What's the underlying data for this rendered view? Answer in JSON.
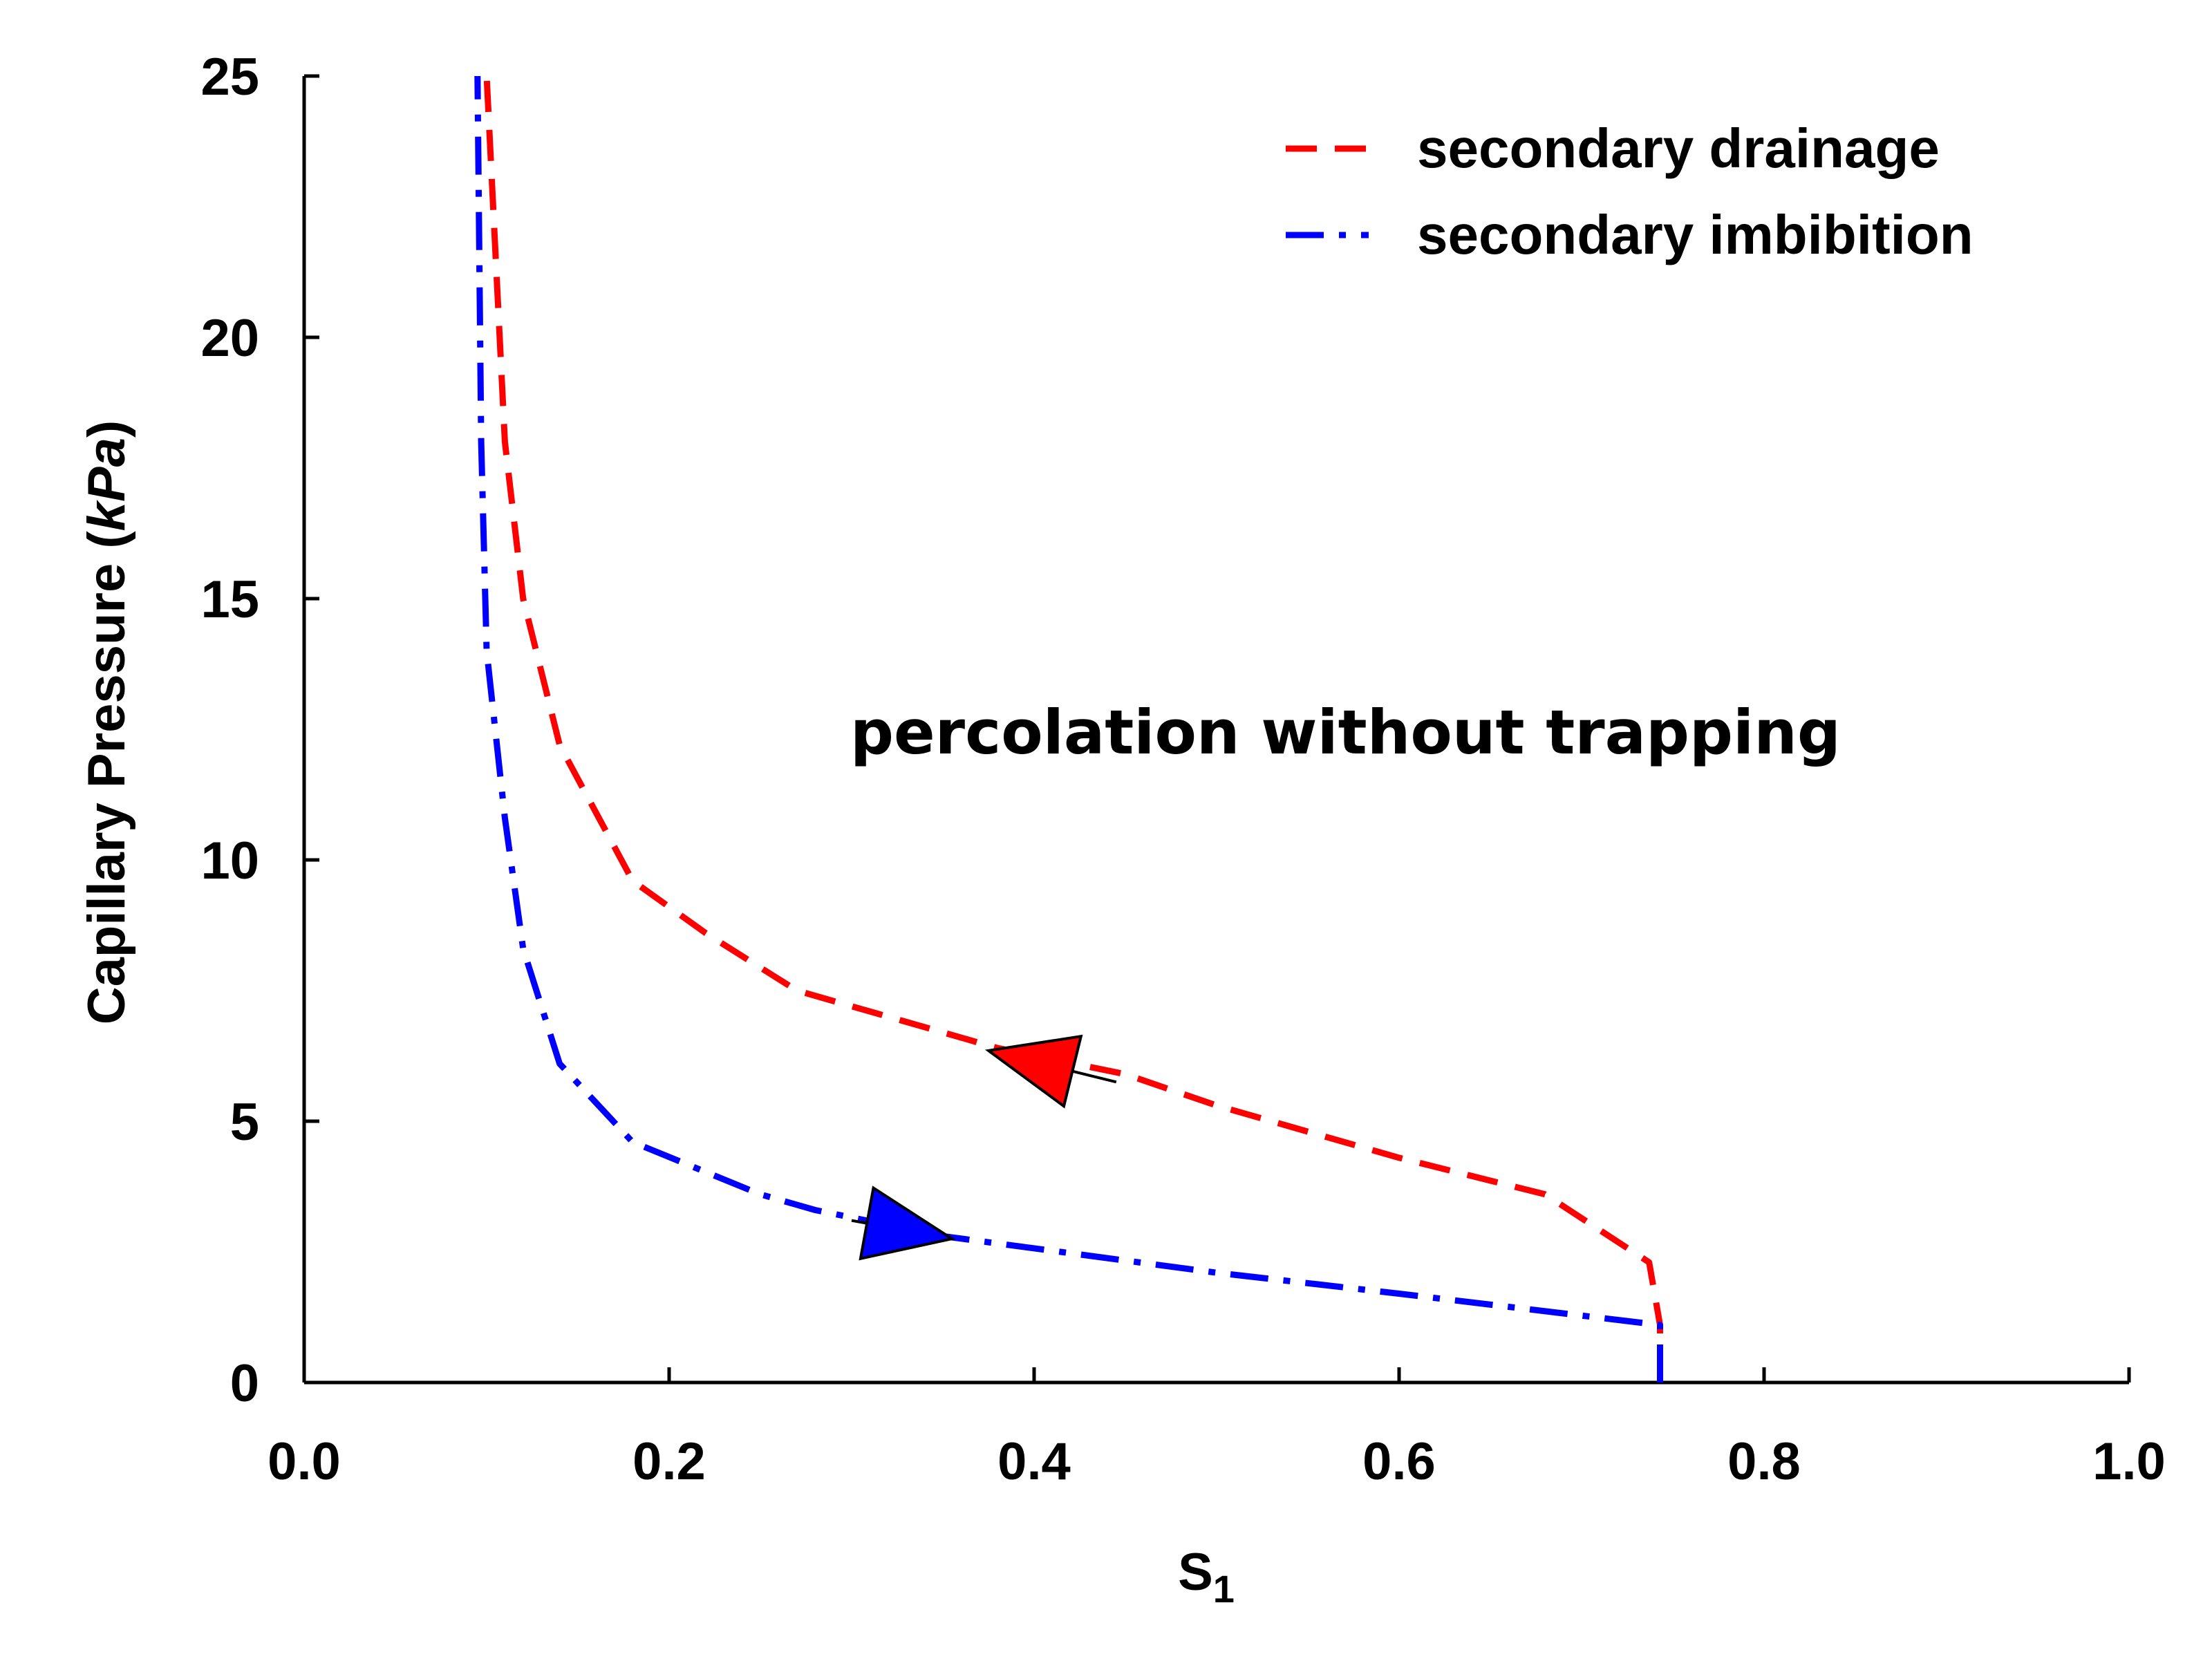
{
  "chart_data": {
    "type": "line",
    "title": "",
    "xlabel": "S",
    "xlabel_subscript": "1",
    "ylabel_prefix": "Capillary Pressure (",
    "ylabel_unit": "kPa",
    "ylabel_suffix": ")",
    "xlim": [
      0.0,
      1.0
    ],
    "ylim": [
      0,
      25
    ],
    "xticks": [
      "0.0",
      "0.2",
      "0.4",
      "0.6",
      "0.8",
      "1.0"
    ],
    "yticks": [
      "0",
      "5",
      "10",
      "15",
      "20",
      "25"
    ],
    "grid": false,
    "legend_position": "top-right",
    "annotation": "percolation without trapping",
    "series": [
      {
        "name": "secondary drainage",
        "color": "#ff0000",
        "style": "dashed",
        "x": [
          0.743,
          0.743,
          0.737,
          0.68,
          0.6,
          0.5,
          0.45,
          0.38,
          0.35,
          0.27,
          0.22,
          0.18,
          0.14,
          0.12,
          0.11,
          0.1
        ],
        "y": [
          0,
          1.1,
          2.3,
          3.6,
          4.3,
          5.3,
          5.9,
          6.4,
          6.7,
          7.5,
          8.6,
          9.6,
          12.2,
          15,
          18,
          25
        ]
      },
      {
        "name": "secondary imbibition",
        "color": "#0000ff",
        "style": "dashdot",
        "x": [
          0.743,
          0.743,
          0.6,
          0.5,
          0.35,
          0.28,
          0.25,
          0.18,
          0.14,
          0.12,
          0.11,
          0.1,
          0.097,
          0.095
        ],
        "y": [
          0,
          1.1,
          1.7,
          2.1,
          2.8,
          3.3,
          3.6,
          4.6,
          6.1,
          8.3,
          10.8,
          14,
          18,
          25
        ]
      }
    ],
    "arrows": [
      {
        "series": "secondary drainage",
        "color": "#ff0000",
        "direction": "left",
        "from": [
          0.445,
          5.75
        ],
        "to": [
          0.375,
          6.35
        ]
      },
      {
        "series": "secondary imbibition",
        "color": "#0000ff",
        "direction": "right",
        "from": [
          0.3,
          3.1
        ],
        "to": [
          0.355,
          2.75
        ]
      }
    ]
  }
}
